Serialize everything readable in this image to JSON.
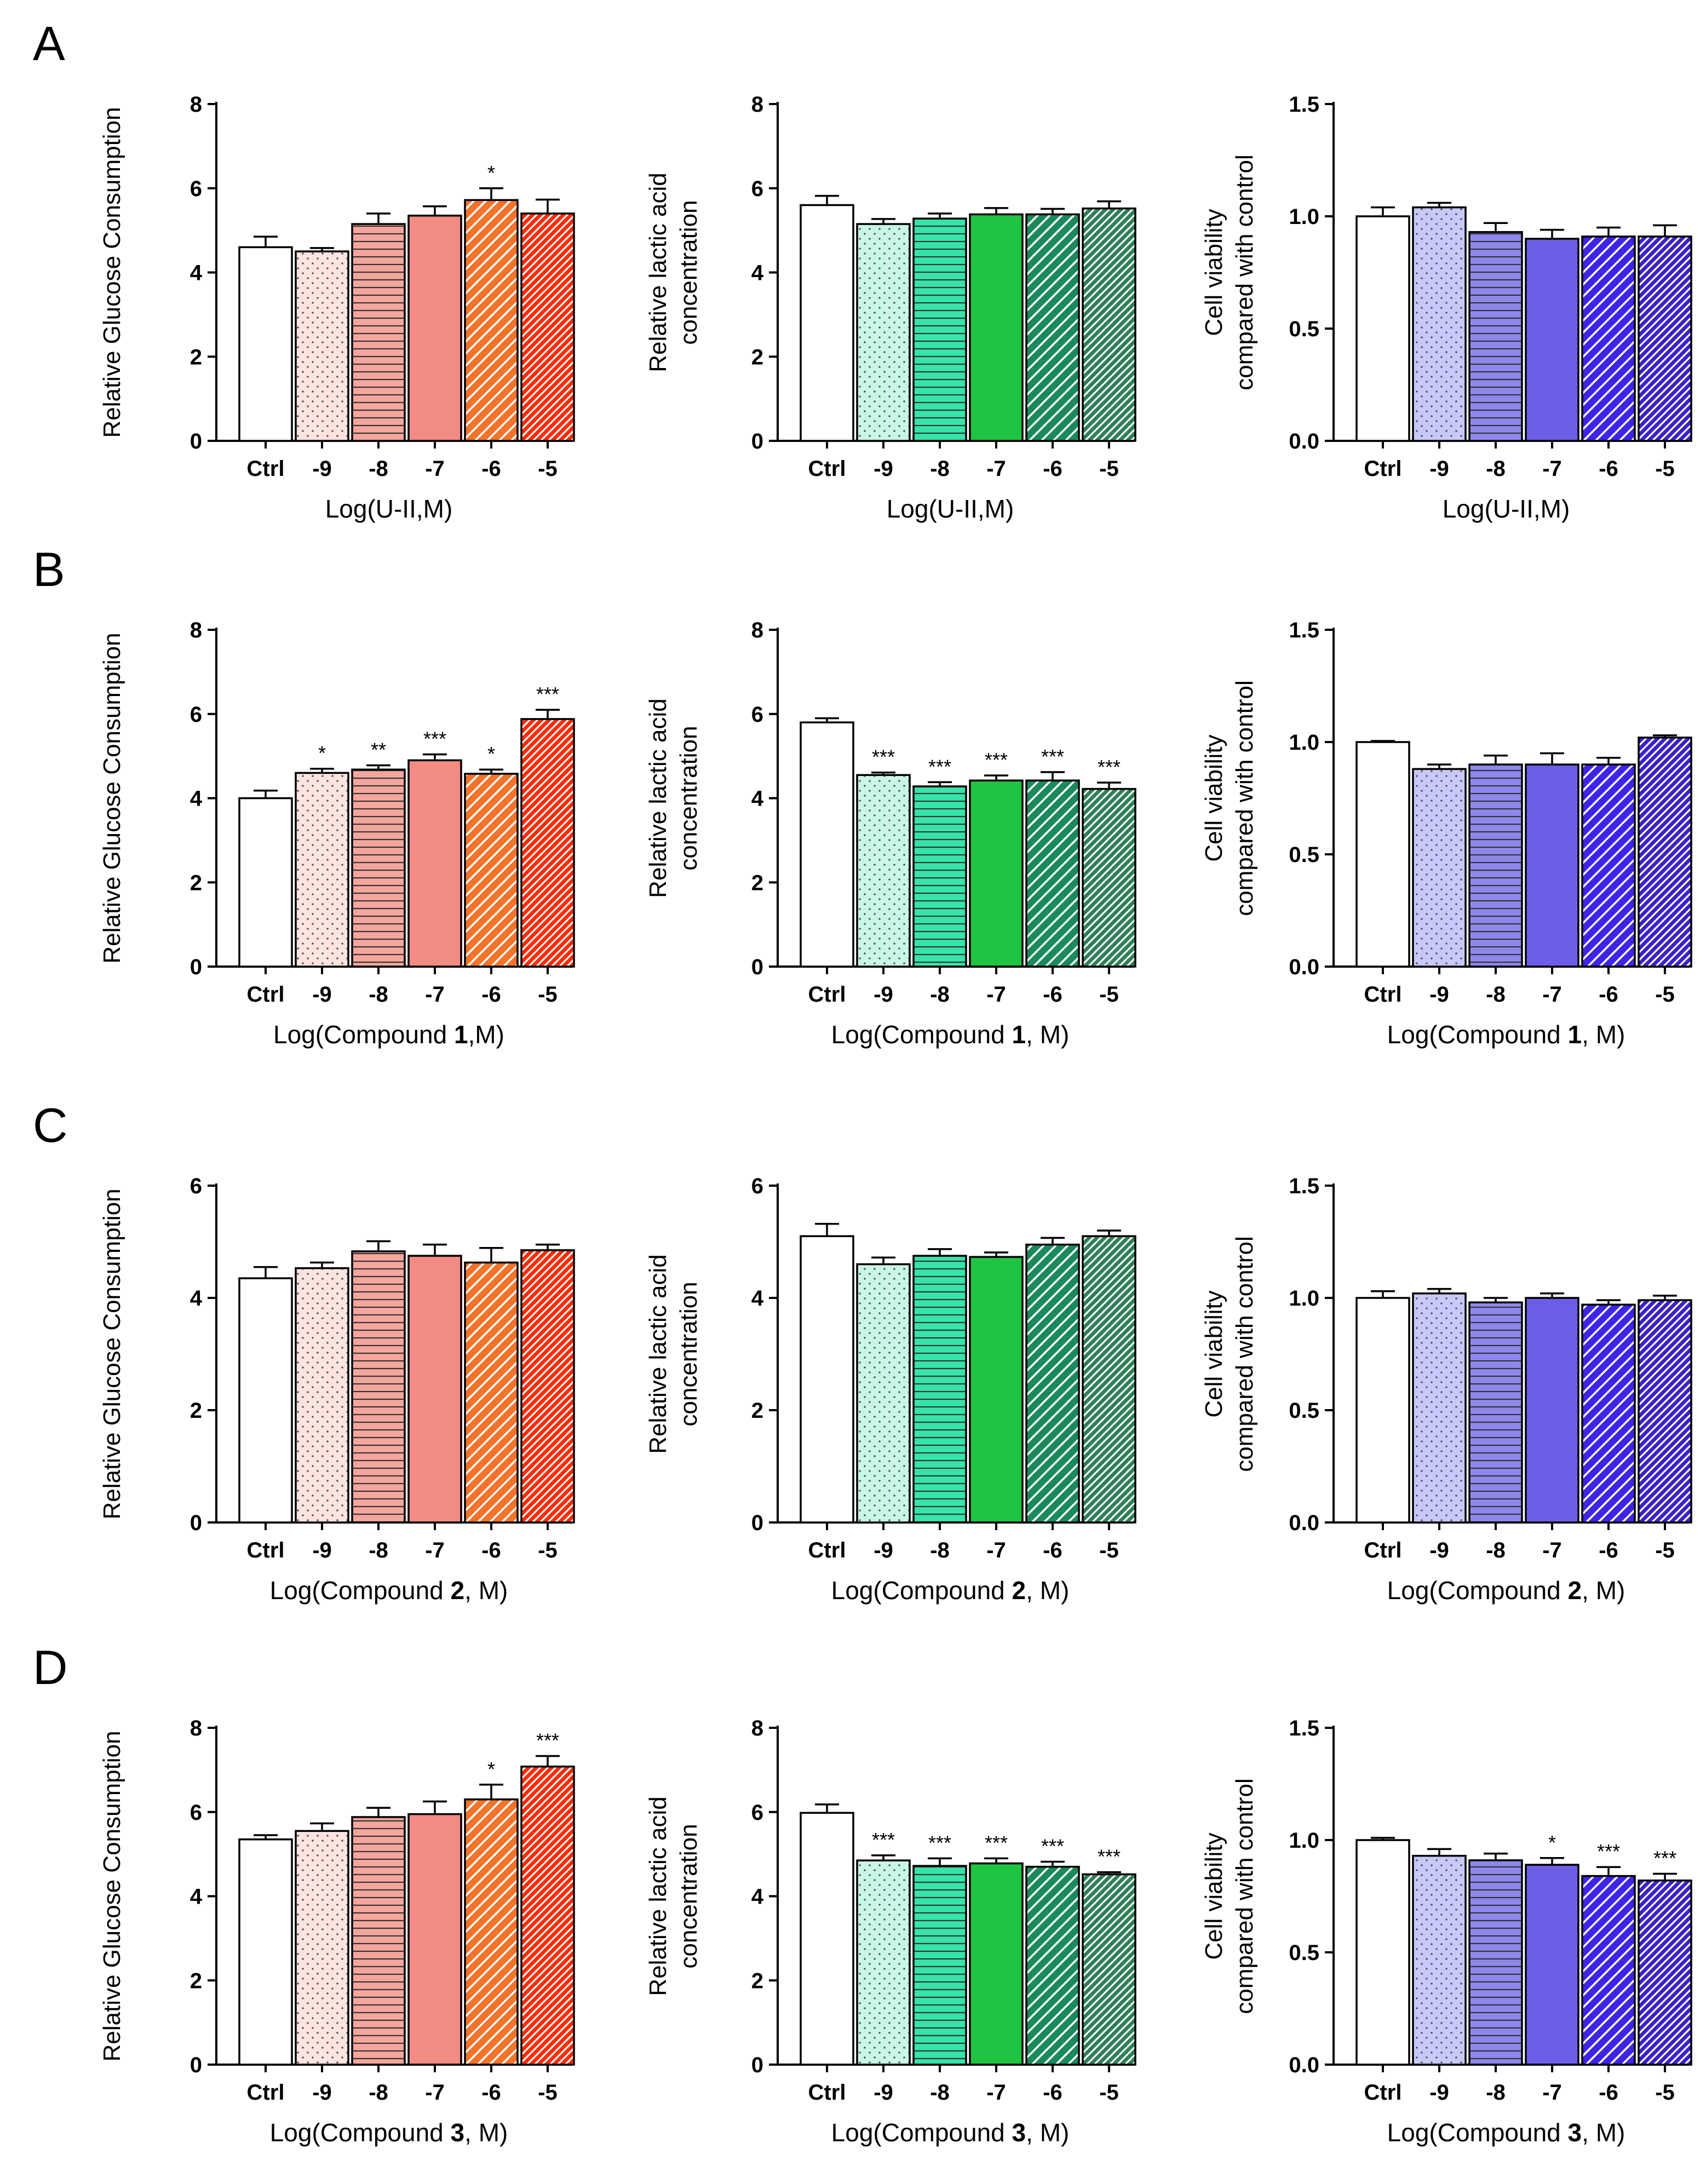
{
  "colors": {
    "ctrl": "#ffffff",
    "glucose": [
      "#fde4e0",
      "#f4a69c",
      "#f28b82",
      "#f3732b",
      "#ff2a00"
    ],
    "lactic": [
      "#c9f7e6",
      "#36e3a8",
      "#1fc442",
      "#1a8a5c",
      "#2f8057"
    ],
    "viability": [
      "#c8c8fb",
      "#8e88ec",
      "#6c5ee6",
      "#3f24e8",
      "#3b21c8"
    ],
    "axis": "#000000"
  },
  "categories": [
    "Ctrl",
    "-9",
    "-8",
    "-7",
    "-6",
    "-5"
  ],
  "patterns": [
    "none",
    "dots",
    "hlines",
    "solid",
    "diag-sparse",
    "diag-dense"
  ],
  "panels": [
    {
      "letter": "A",
      "xlabel_prefix": "Log(U-II,M)",
      "xlabel_bold": "",
      "xlabel_suffix": "",
      "charts": [
        {
          "type": "bar",
          "title": "",
          "ylabel": [
            "Relative Glucose Consumption"
          ],
          "palette": "glucose",
          "ylim": [
            0,
            8
          ],
          "yticks": [
            "0",
            "2",
            "4",
            "6",
            "8"
          ],
          "values": [
            4.6,
            4.5,
            5.15,
            5.35,
            5.72,
            5.4
          ],
          "errors": [
            0.25,
            0.08,
            0.25,
            0.22,
            0.28,
            0.33
          ],
          "sig": [
            "",
            "",
            "",
            "",
            "*",
            ""
          ]
        },
        {
          "type": "bar",
          "title": "",
          "ylabel": [
            "Relative lactic acid",
            "concentration"
          ],
          "palette": "lactic",
          "ylim": [
            0,
            8
          ],
          "yticks": [
            "0",
            "2",
            "4",
            "6",
            "8"
          ],
          "values": [
            5.6,
            5.15,
            5.28,
            5.38,
            5.38,
            5.52
          ],
          "errors": [
            0.22,
            0.12,
            0.12,
            0.15,
            0.13,
            0.17
          ],
          "sig": [
            "",
            "",
            "",
            "",
            "",
            ""
          ]
        },
        {
          "type": "bar",
          "title": "",
          "ylabel": [
            "Cell viability",
            "compared with control"
          ],
          "palette": "viability",
          "ylim": [
            0,
            1.5
          ],
          "yticks": [
            "0.0",
            "0.5",
            "1.0",
            "1.5"
          ],
          "values": [
            1.0,
            1.04,
            0.93,
            0.9,
            0.91,
            0.91
          ],
          "errors": [
            0.04,
            0.02,
            0.04,
            0.04,
            0.04,
            0.05
          ],
          "sig": [
            "",
            "",
            "",
            "",
            "",
            ""
          ]
        }
      ]
    },
    {
      "letter": "B",
      "xlabel_prefix": "Log(Compound ",
      "xlabel_bold": "1",
      "xlabel_suffix": ",M)",
      "xlabel_suffix_alt": ", M)",
      "charts": [
        {
          "type": "bar",
          "title": "",
          "ylabel": [
            "Relative Glucose Consumption"
          ],
          "palette": "glucose",
          "ylim": [
            0,
            8
          ],
          "yticks": [
            "0",
            "2",
            "4",
            "6",
            "8"
          ],
          "values": [
            4.0,
            4.6,
            4.68,
            4.9,
            4.58,
            5.88
          ],
          "errors": [
            0.18,
            0.1,
            0.1,
            0.14,
            0.1,
            0.22
          ],
          "sig": [
            "",
            "*",
            "**",
            "***",
            "*",
            "***"
          ]
        },
        {
          "type": "bar",
          "title": "",
          "ylabel": [
            "Relative lactic acid",
            "concentration"
          ],
          "palette": "lactic",
          "ylim": [
            0,
            8
          ],
          "yticks": [
            "0",
            "2",
            "4",
            "6",
            "8"
          ],
          "values": [
            5.8,
            4.55,
            4.28,
            4.42,
            4.42,
            4.22
          ],
          "errors": [
            0.1,
            0.06,
            0.1,
            0.12,
            0.2,
            0.15
          ],
          "sig": [
            "",
            "***",
            "***",
            "***",
            "***",
            "***"
          ]
        },
        {
          "type": "bar",
          "title": "",
          "ylabel": [
            "Cell viability",
            "compared with control"
          ],
          "palette": "viability",
          "ylim": [
            0,
            1.5
          ],
          "yticks": [
            "0.0",
            "0.5",
            "1.0",
            "1.5"
          ],
          "values": [
            1.0,
            0.88,
            0.9,
            0.9,
            0.9,
            1.02
          ],
          "errors": [
            0.005,
            0.02,
            0.04,
            0.05,
            0.03,
            0.01
          ],
          "sig": [
            "",
            "",
            "",
            "",
            "",
            ""
          ]
        }
      ]
    },
    {
      "letter": "C",
      "xlabel_prefix": "Log(Compound ",
      "xlabel_bold": "2",
      "xlabel_suffix": ", M)",
      "charts": [
        {
          "type": "bar",
          "title": "",
          "ylabel": [
            "Relative Glucose Consumption"
          ],
          "palette": "glucose",
          "ylim": [
            0,
            6
          ],
          "yticks": [
            "0",
            "2",
            "4",
            "6"
          ],
          "values": [
            4.35,
            4.53,
            4.83,
            4.75,
            4.63,
            4.85
          ],
          "errors": [
            0.2,
            0.1,
            0.18,
            0.2,
            0.26,
            0.1
          ],
          "sig": [
            "",
            "",
            "",
            "",
            "",
            ""
          ]
        },
        {
          "type": "bar",
          "title": "",
          "ylabel": [
            "Relative lactic acid",
            "concentration"
          ],
          "palette": "lactic",
          "ylim": [
            0,
            6
          ],
          "yticks": [
            "0",
            "2",
            "4",
            "6"
          ],
          "values": [
            5.1,
            4.6,
            4.75,
            4.73,
            4.95,
            5.1
          ],
          "errors": [
            0.22,
            0.12,
            0.12,
            0.08,
            0.12,
            0.1
          ],
          "sig": [
            "",
            "",
            "",
            "",
            "",
            ""
          ]
        },
        {
          "type": "bar",
          "title": "",
          "ylabel": [
            "Cell viability",
            "compared with control"
          ],
          "palette": "viability",
          "ylim": [
            0,
            1.5
          ],
          "yticks": [
            "0.0",
            "0.5",
            "1.0",
            "1.5"
          ],
          "values": [
            1.0,
            1.02,
            0.98,
            1.0,
            0.97,
            0.99
          ],
          "errors": [
            0.03,
            0.02,
            0.02,
            0.02,
            0.02,
            0.02
          ],
          "sig": [
            "",
            "",
            "",
            "",
            "",
            ""
          ]
        }
      ]
    },
    {
      "letter": "D",
      "xlabel_prefix": "Log(Compound ",
      "xlabel_bold": "3",
      "xlabel_suffix": ", M)",
      "charts": [
        {
          "type": "bar",
          "title": "",
          "ylabel": [
            "Relative Glucose Consumption"
          ],
          "palette": "glucose",
          "ylim": [
            0,
            8
          ],
          "yticks": [
            "0",
            "2",
            "4",
            "6",
            "8"
          ],
          "values": [
            5.35,
            5.55,
            5.88,
            5.95,
            6.3,
            7.08
          ],
          "errors": [
            0.1,
            0.18,
            0.22,
            0.3,
            0.35,
            0.25
          ],
          "sig": [
            "",
            "",
            "",
            "",
            "*",
            "***"
          ]
        },
        {
          "type": "bar",
          "title": "",
          "ylabel": [
            "Relative lactic acid",
            "concentration"
          ],
          "palette": "lactic",
          "ylim": [
            0,
            8
          ],
          "yticks": [
            "0",
            "2",
            "4",
            "6",
            "8"
          ],
          "values": [
            5.98,
            4.85,
            4.72,
            4.78,
            4.7,
            4.52
          ],
          "errors": [
            0.2,
            0.12,
            0.18,
            0.12,
            0.12,
            0.05
          ],
          "sig": [
            "",
            "***",
            "***",
            "***",
            "***",
            "***"
          ]
        },
        {
          "type": "bar",
          "title": "",
          "ylabel": [
            "Cell viability",
            "compared with control"
          ],
          "palette": "viability",
          "ylim": [
            0,
            1.5
          ],
          "yticks": [
            "0.0",
            "0.5",
            "1.0",
            "1.5"
          ],
          "values": [
            1.0,
            0.93,
            0.91,
            0.89,
            0.84,
            0.82
          ],
          "errors": [
            0.01,
            0.03,
            0.03,
            0.03,
            0.04,
            0.03
          ],
          "sig": [
            "",
            "",
            "",
            "*",
            "***",
            "***"
          ]
        }
      ]
    }
  ]
}
